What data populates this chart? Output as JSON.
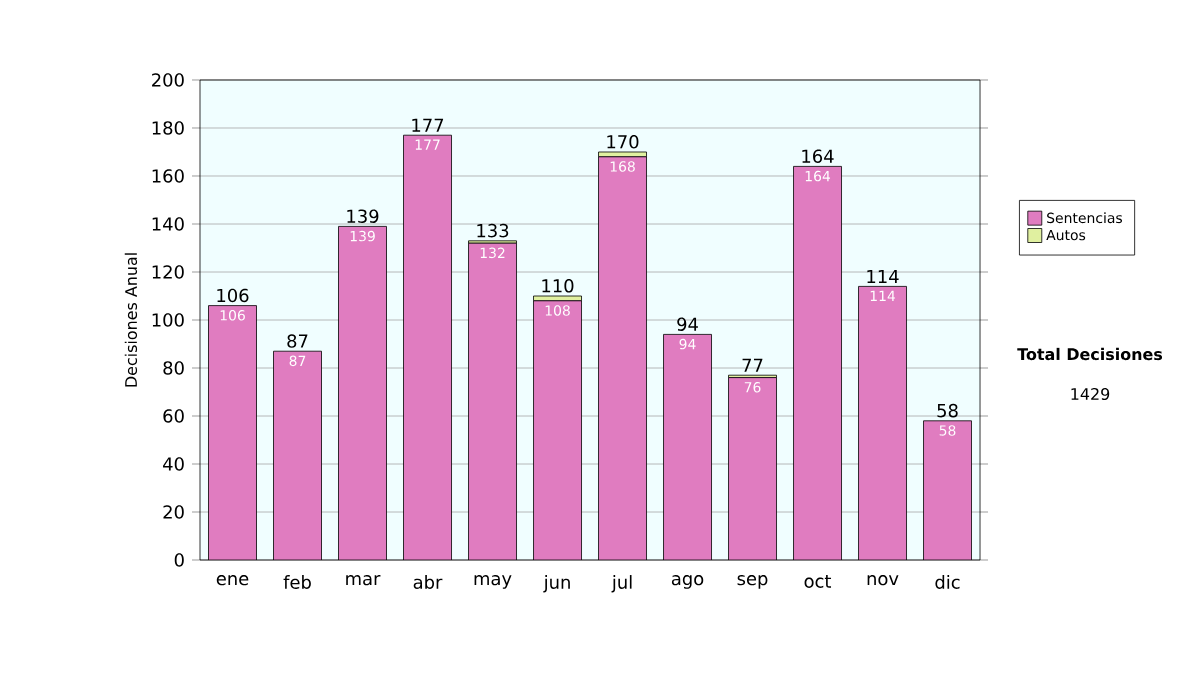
{
  "chart_data": {
    "type": "bar",
    "stacked": true,
    "ylabel": "Decisiones Anual",
    "categories": [
      "ene",
      "feb",
      "mar",
      "abr",
      "may",
      "jun",
      "jul",
      "ago",
      "sep",
      "oct",
      "nov",
      "dic"
    ],
    "series": [
      {
        "name": "Sentencias",
        "color": "#e07cc0",
        "values": [
          106,
          87,
          139,
          177,
          132,
          108,
          168,
          94,
          76,
          164,
          114,
          58
        ],
        "value_labels": [
          "106",
          "87",
          "139",
          "177",
          "132",
          "108",
          "168",
          "94",
          "76",
          "164",
          "114",
          "58"
        ]
      },
      {
        "name": "Autos",
        "color": "#e0f0a0",
        "values": [
          0,
          0,
          0,
          0,
          1,
          2,
          2,
          0,
          1,
          0,
          0,
          0
        ]
      }
    ],
    "totals": [
      "106",
      "87",
      "139",
      "177",
      "133",
      "110",
      "170",
      "94",
      "77",
      "164",
      "114",
      "58"
    ],
    "ylim": [
      0,
      200
    ],
    "yticks": [
      0,
      20,
      40,
      60,
      80,
      100,
      120,
      140,
      160,
      180,
      200
    ],
    "grid": "y",
    "legend": "right",
    "annotations": [
      "Total Decisiones",
      "1429"
    ]
  }
}
